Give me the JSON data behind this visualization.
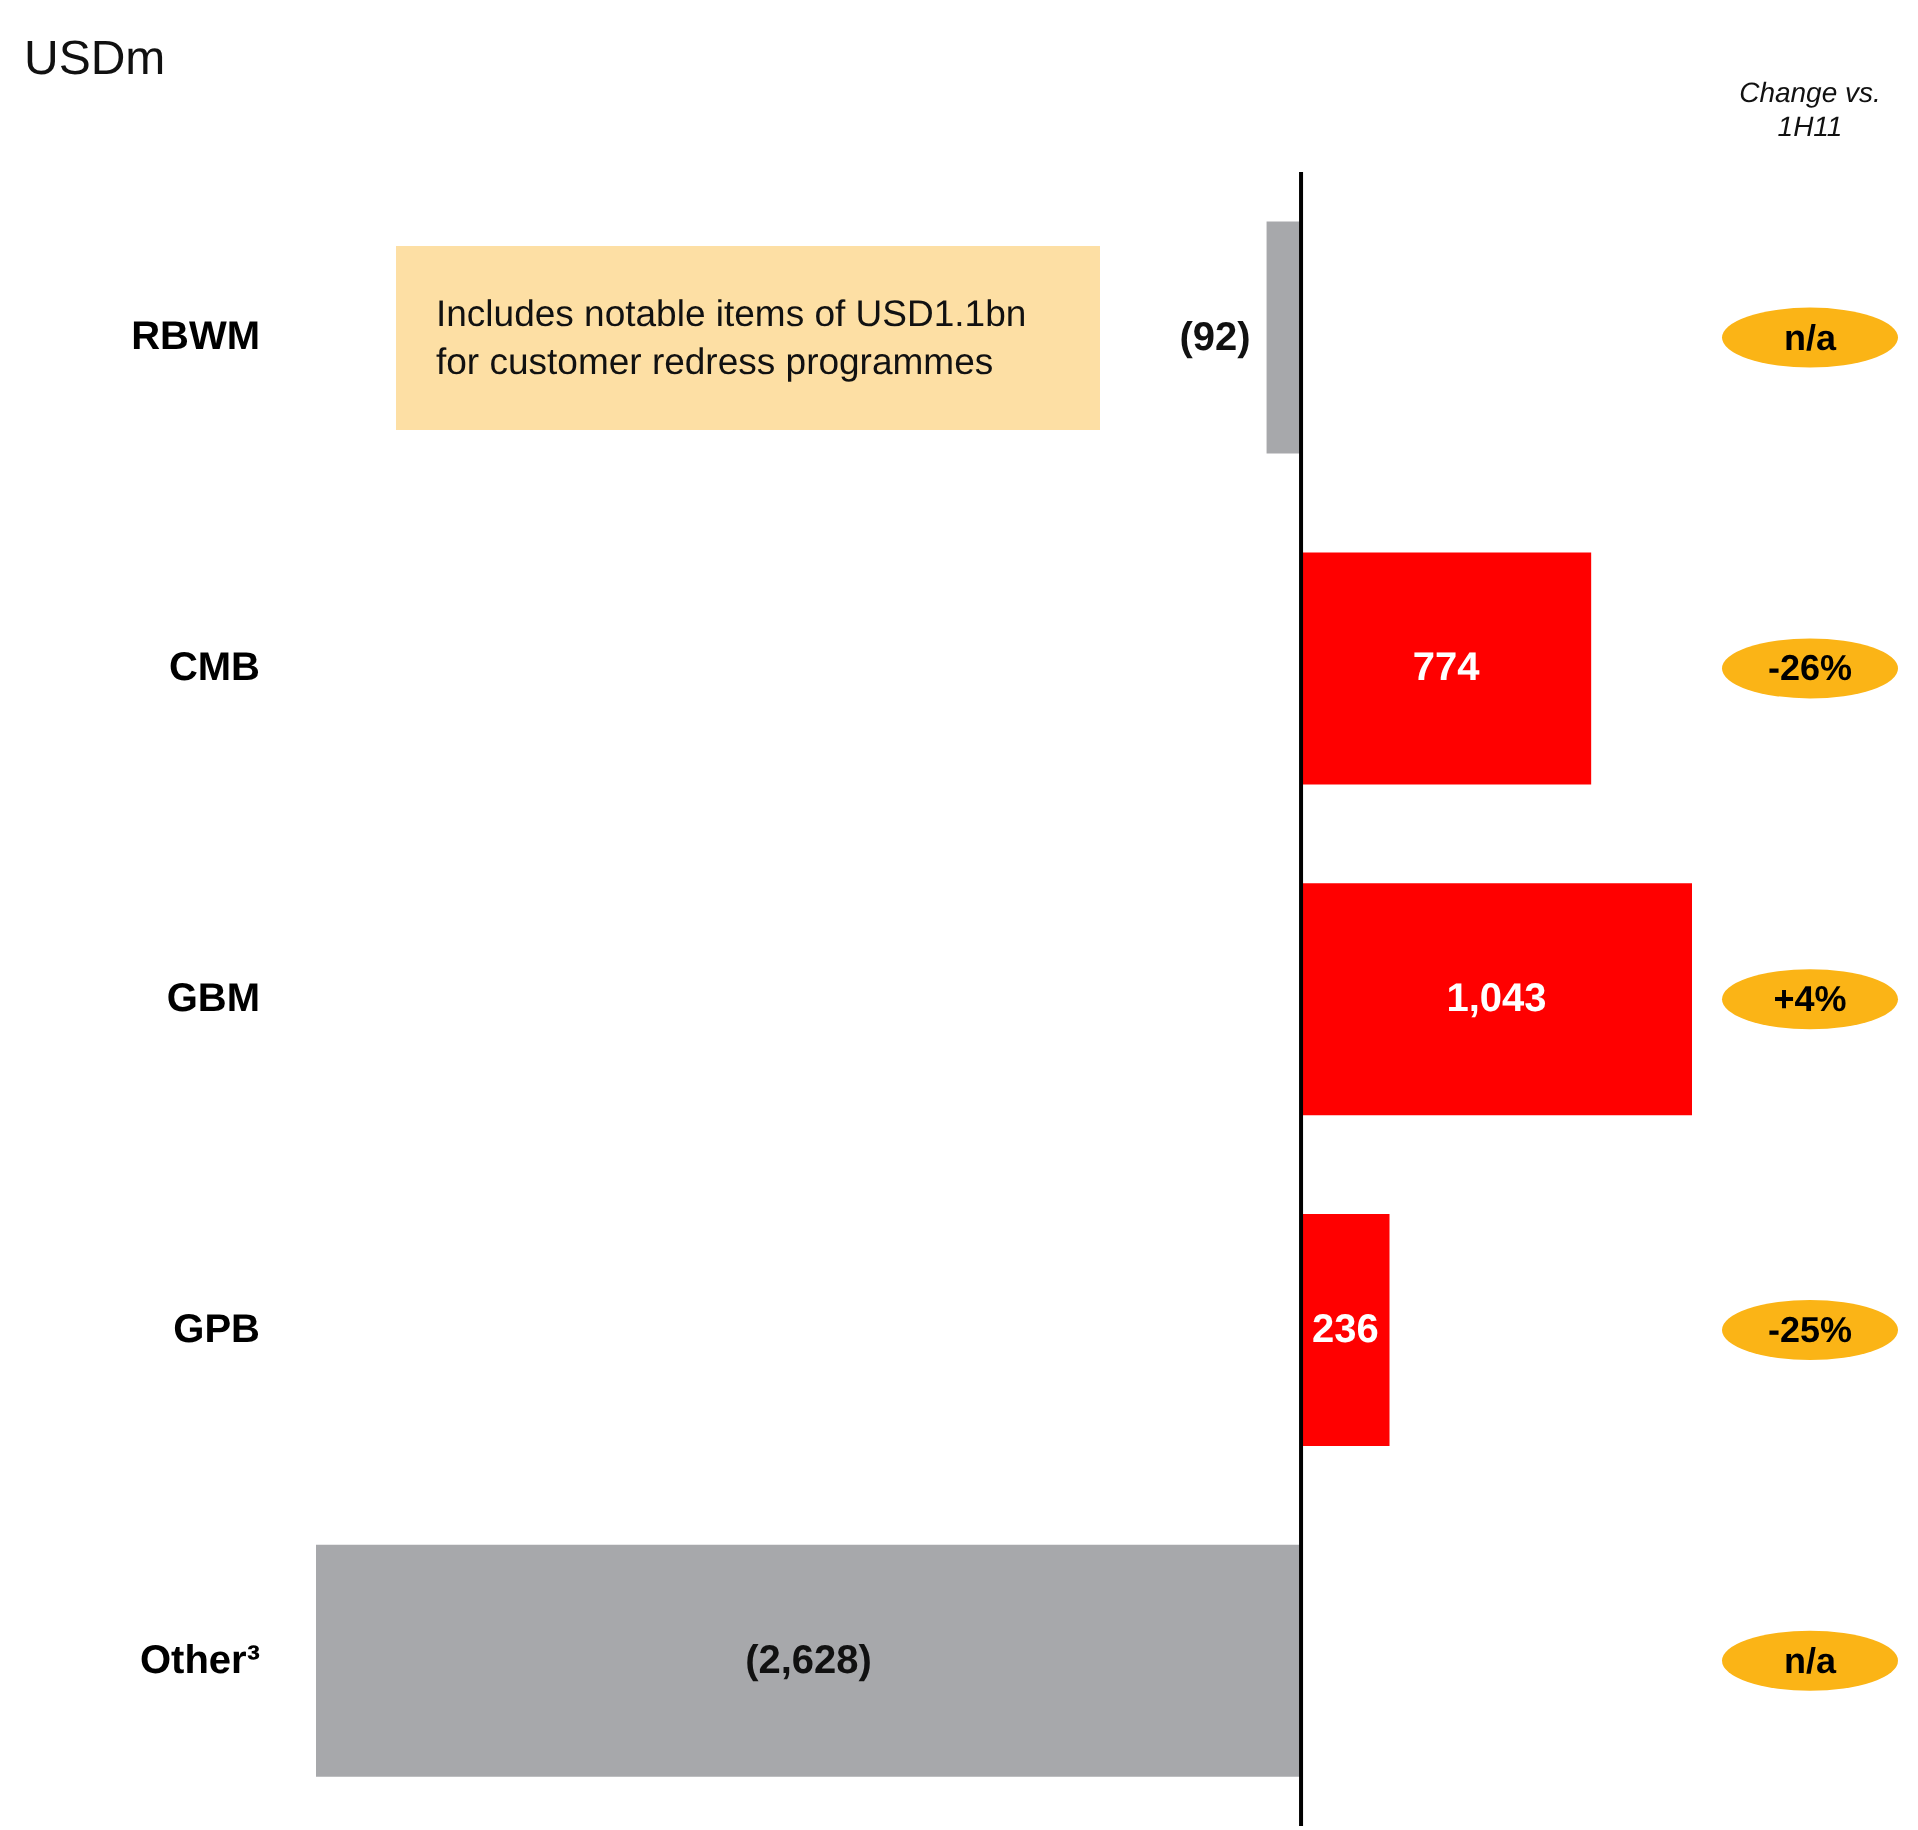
{
  "chart_data": {
    "type": "bar",
    "orientation": "horizontal",
    "title": "USDm",
    "categories": [
      "RBWM",
      "CMB",
      "GBM",
      "GPB",
      "Other³"
    ],
    "values": [
      -92,
      774,
      1043,
      236,
      -2628
    ],
    "colors": [
      "#a7a8ab",
      "#ff0000",
      "#ff0000",
      "#ff0000",
      "#a7a8ab"
    ],
    "value_labels": [
      "(92)",
      "774",
      "1,043",
      "236",
      "(2,628)"
    ],
    "tick_labels": "y",
    "ref_lines": [
      {
        "axis": "x",
        "value": 0,
        "color": "#000000"
      }
    ],
    "annotations": [
      "Change vs. 1H11",
      "Includes notable items of USD1.1bn for customer redress programmes",
      "n/a",
      "-26%",
      "+4%",
      "-25%",
      "n/a"
    ]
  }
}
